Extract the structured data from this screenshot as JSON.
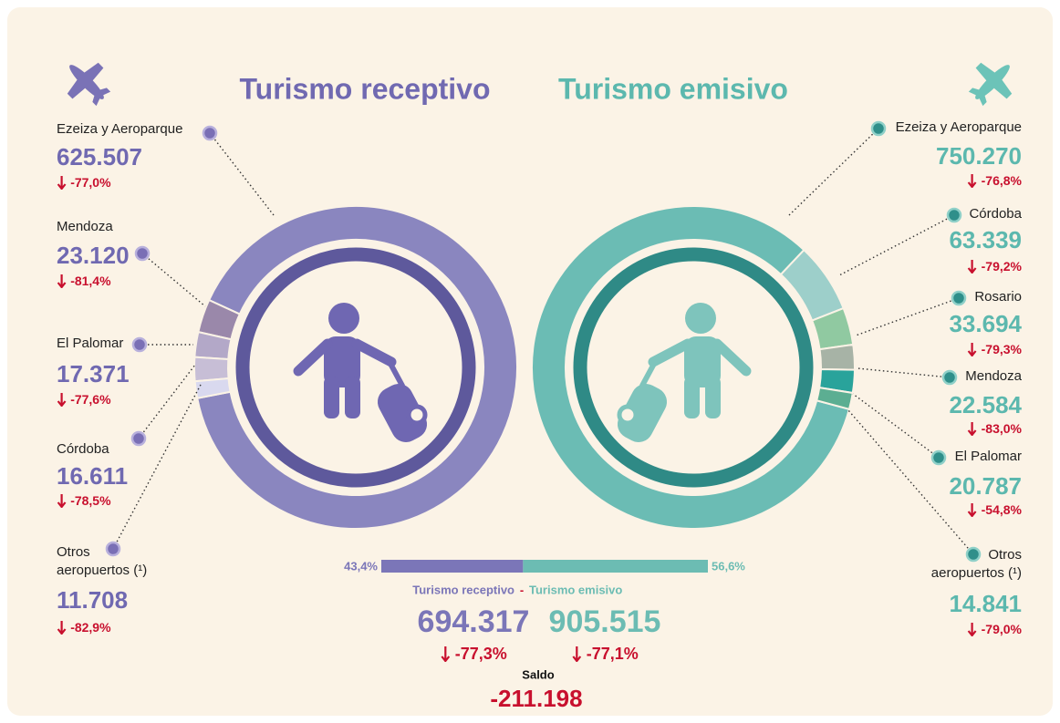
{
  "chart_data": [
    {
      "type": "donut",
      "title": "Turismo receptivo",
      "color": "#7069b1",
      "categories": [
        "Ezeiza y Aeroparque",
        "Mendoza",
        "El Palomar",
        "Córdoba",
        "Otros aeropuertos (¹)"
      ],
      "values": [
        625507,
        23120,
        17371,
        16611,
        11708
      ],
      "value_labels": [
        "625.507",
        "23.120",
        "17.371",
        "16.611",
        "11.708"
      ],
      "changes": [
        {
          "value": -77.0,
          "label": "-77,0%"
        },
        {
          "value": -81.4,
          "label": "-81,4%"
        },
        {
          "value": -77.6,
          "label": "-77,6%"
        },
        {
          "value": -78.5,
          "label": "-78,5%"
        },
        {
          "value": -82.9,
          "label": "-82,9%"
        }
      ],
      "colors": [
        "#8a86bf",
        "#9a88aa",
        "#b3a8c8",
        "#c7bed6",
        "#d9d9ef"
      ]
    },
    {
      "type": "donut",
      "title": "Turismo emisivo",
      "color": "#5cb8ae",
      "categories": [
        "Ezeiza y Aeroparque",
        "Córdoba",
        "Rosario",
        "Mendoza",
        "El Palomar",
        "Otros aeropuertos (¹)"
      ],
      "values": [
        750270,
        63339,
        33694,
        22584,
        20787,
        14841
      ],
      "value_labels": [
        "750.270",
        "63.339",
        "33.694",
        "22.584",
        "20.787",
        "14.841"
      ],
      "changes": [
        {
          "value": -76.8,
          "label": "-76,8%"
        },
        {
          "value": -79.2,
          "label": "-79,2%"
        },
        {
          "value": -79.3,
          "label": "-79,3%"
        },
        {
          "value": -83.0,
          "label": "-83,0%"
        },
        {
          "value": -54.8,
          "label": "-54,8%"
        },
        {
          "value": -79.0,
          "label": "-79,0%"
        }
      ],
      "colors": [
        "#6bbcb4",
        "#9dcfca",
        "#90c9a1",
        "#a7b3a6",
        "#29a39b",
        "#5cae92"
      ]
    },
    {
      "type": "split-bar",
      "xlim": [
        0,
        100
      ],
      "separator": "-",
      "series": [
        {
          "name": "Turismo receptivo",
          "color": "#7b76b8",
          "values": [
            43.4
          ],
          "value_labels": [
            "43,4%"
          ],
          "total": "694.317",
          "change": {
            "value": -77.3,
            "label": "-77,3%"
          }
        },
        {
          "name": "Turismo emisivo",
          "color": "#6cbcb3",
          "values": [
            56.6
          ],
          "value_labels": [
            "56,6%"
          ],
          "total": "905.515",
          "change": {
            "value": -77.1,
            "label": "-77,1%"
          }
        }
      ],
      "balance": {
        "title": "Saldo",
        "value": -211198,
        "label": "-211.198"
      }
    }
  ]
}
